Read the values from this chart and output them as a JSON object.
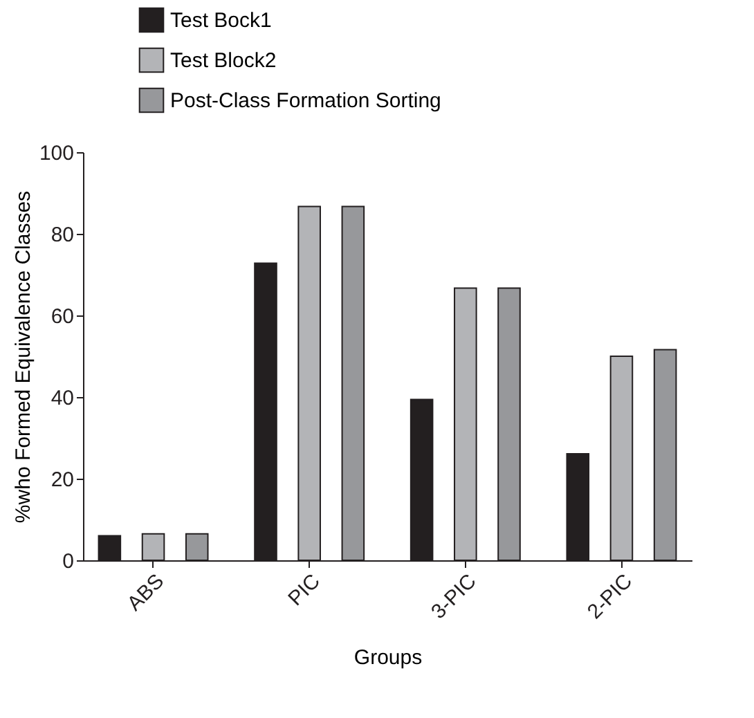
{
  "chart_data": {
    "type": "bar",
    "xlabel": "Groups",
    "ylabel": "%who Formed Equivalence Classes",
    "categories": [
      "ABS",
      "PIC",
      "3-PIC",
      "2-PIC"
    ],
    "series": [
      {
        "name": "Test Bock1",
        "color": "#231f20",
        "values": [
          6.0,
          72.8,
          39.4,
          26.1
        ]
      },
      {
        "name": "Test Block2",
        "color": "#b3b4b7",
        "values": [
          6.5,
          86.7,
          66.7,
          50.0
        ]
      },
      {
        "name": "Post-Class Formation Sorting",
        "color": "#97989b",
        "values": [
          6.5,
          86.7,
          66.7,
          51.6
        ]
      }
    ],
    "ylim": [
      0,
      100
    ],
    "yticks": [
      0,
      20,
      40,
      60,
      80,
      100
    ],
    "grid": false,
    "legend": "top"
  }
}
